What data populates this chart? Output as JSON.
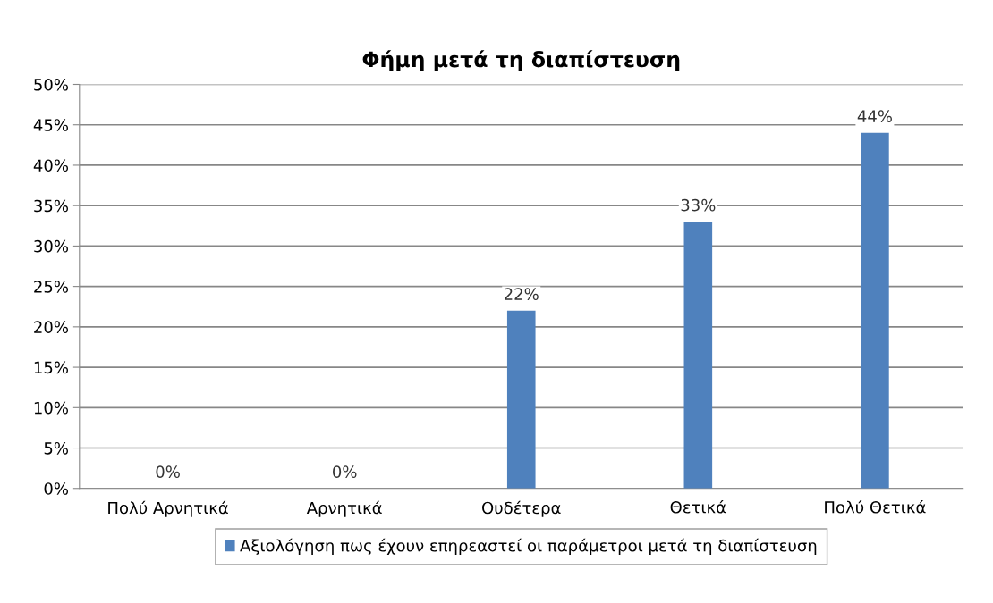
{
  "chart_data": {
    "type": "bar",
    "title": "Φήμη μετά τη διαπίστευση",
    "categories": [
      "Πολύ Αρνητικά",
      "Αρνητικά",
      "Ουδέτερα",
      "Θετικά",
      "Πολύ Θετικά"
    ],
    "series": [
      {
        "name": "Αξιολόγηση πως έχουν επηρεαστεί οι παράμετροι μετά τη διαπίστευση",
        "color": "#4f81bd",
        "values": [
          0,
          0,
          22,
          33,
          44
        ],
        "value_labels": [
          "0%",
          "0%",
          "22%",
          "33%",
          "44%"
        ]
      }
    ],
    "ylim": [
      0,
      50
    ],
    "yticks": [
      {
        "value": 0,
        "label": "0%"
      },
      {
        "value": 5,
        "label": "5%"
      },
      {
        "value": 10,
        "label": "10%"
      },
      {
        "value": 15,
        "label": "15%"
      },
      {
        "value": 20,
        "label": "20%"
      },
      {
        "value": 25,
        "label": "25%"
      },
      {
        "value": 30,
        "label": "30%"
      },
      {
        "value": 35,
        "label": "35%"
      },
      {
        "value": 40,
        "label": "40%"
      },
      {
        "value": 45,
        "label": "45%"
      },
      {
        "value": 50,
        "label": "50%"
      }
    ],
    "grid": "y",
    "legend": "bottom"
  }
}
